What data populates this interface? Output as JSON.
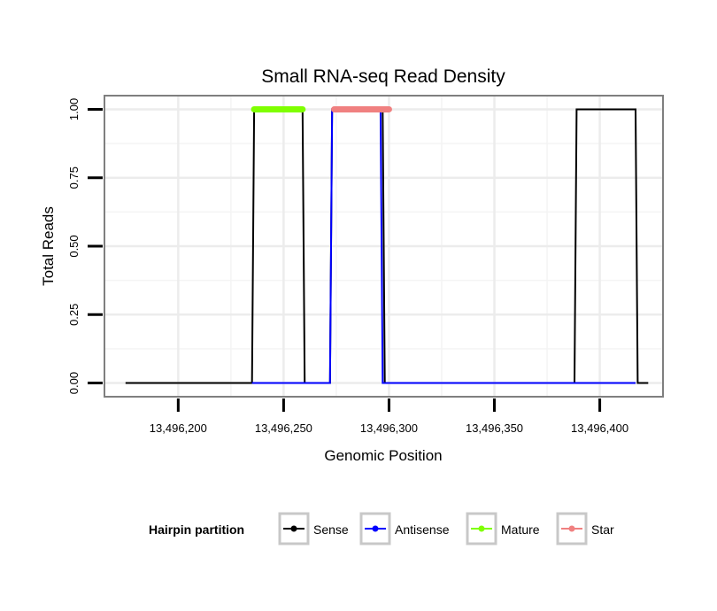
{
  "chart_data": {
    "type": "line",
    "title": "Small RNA-seq Read Density",
    "xlabel": "Genomic Position",
    "ylabel": "Total Reads",
    "xlim": [
      13496165,
      13496430
    ],
    "ylim": [
      -0.05,
      1.05
    ],
    "x_ticks": [
      13496200,
      13496250,
      13496300,
      13496350,
      13496400
    ],
    "x_tick_labels": [
      "13,496,200",
      "13,496,250",
      "13,496,300",
      "13,496,350",
      "13,496,400"
    ],
    "y_ticks": [
      0,
      0.25,
      0.5,
      0.75,
      1
    ],
    "y_tick_labels": [
      "0.00",
      "0.25",
      "0.50",
      "0.75",
      "1.00"
    ],
    "grid": true,
    "legend": {
      "title": "Hairpin partition",
      "position": "bottom",
      "items": [
        {
          "label": "Sense",
          "color": "#000000"
        },
        {
          "label": "Antisense",
          "color": "#0000FF"
        },
        {
          "label": "Mature",
          "color": "#7FFF00"
        },
        {
          "label": "Star",
          "color": "#F08080"
        }
      ]
    },
    "series": [
      {
        "name": "Sense",
        "color": "#000000",
        "points": [
          [
            13496175,
            0
          ],
          [
            13496235,
            0
          ],
          [
            13496236,
            1
          ],
          [
            13496259,
            1
          ],
          [
            13496260,
            0
          ],
          [
            13496272,
            0
          ],
          [
            13496273,
            1
          ],
          [
            13496297,
            1
          ],
          [
            13496298,
            0
          ],
          [
            13496388,
            0
          ],
          [
            13496389,
            1
          ],
          [
            13496417,
            1
          ],
          [
            13496418,
            0
          ],
          [
            13496423,
            0
          ]
        ]
      },
      {
        "name": "Antisense",
        "color": "#0000FF",
        "points": [
          [
            13496235,
            0
          ],
          [
            13496272,
            0
          ],
          [
            13496273,
            1
          ],
          [
            13496296,
            1
          ],
          [
            13496297,
            0
          ],
          [
            13496417,
            0
          ]
        ]
      }
    ],
    "segments": [
      {
        "name": "Mature",
        "color": "#7FFF00",
        "x_start": 13496236,
        "x_end": 13496259,
        "y": 1
      },
      {
        "name": "Star",
        "color": "#F08080",
        "x_start": 13496274,
        "x_end": 13496300,
        "y": 1
      }
    ]
  }
}
